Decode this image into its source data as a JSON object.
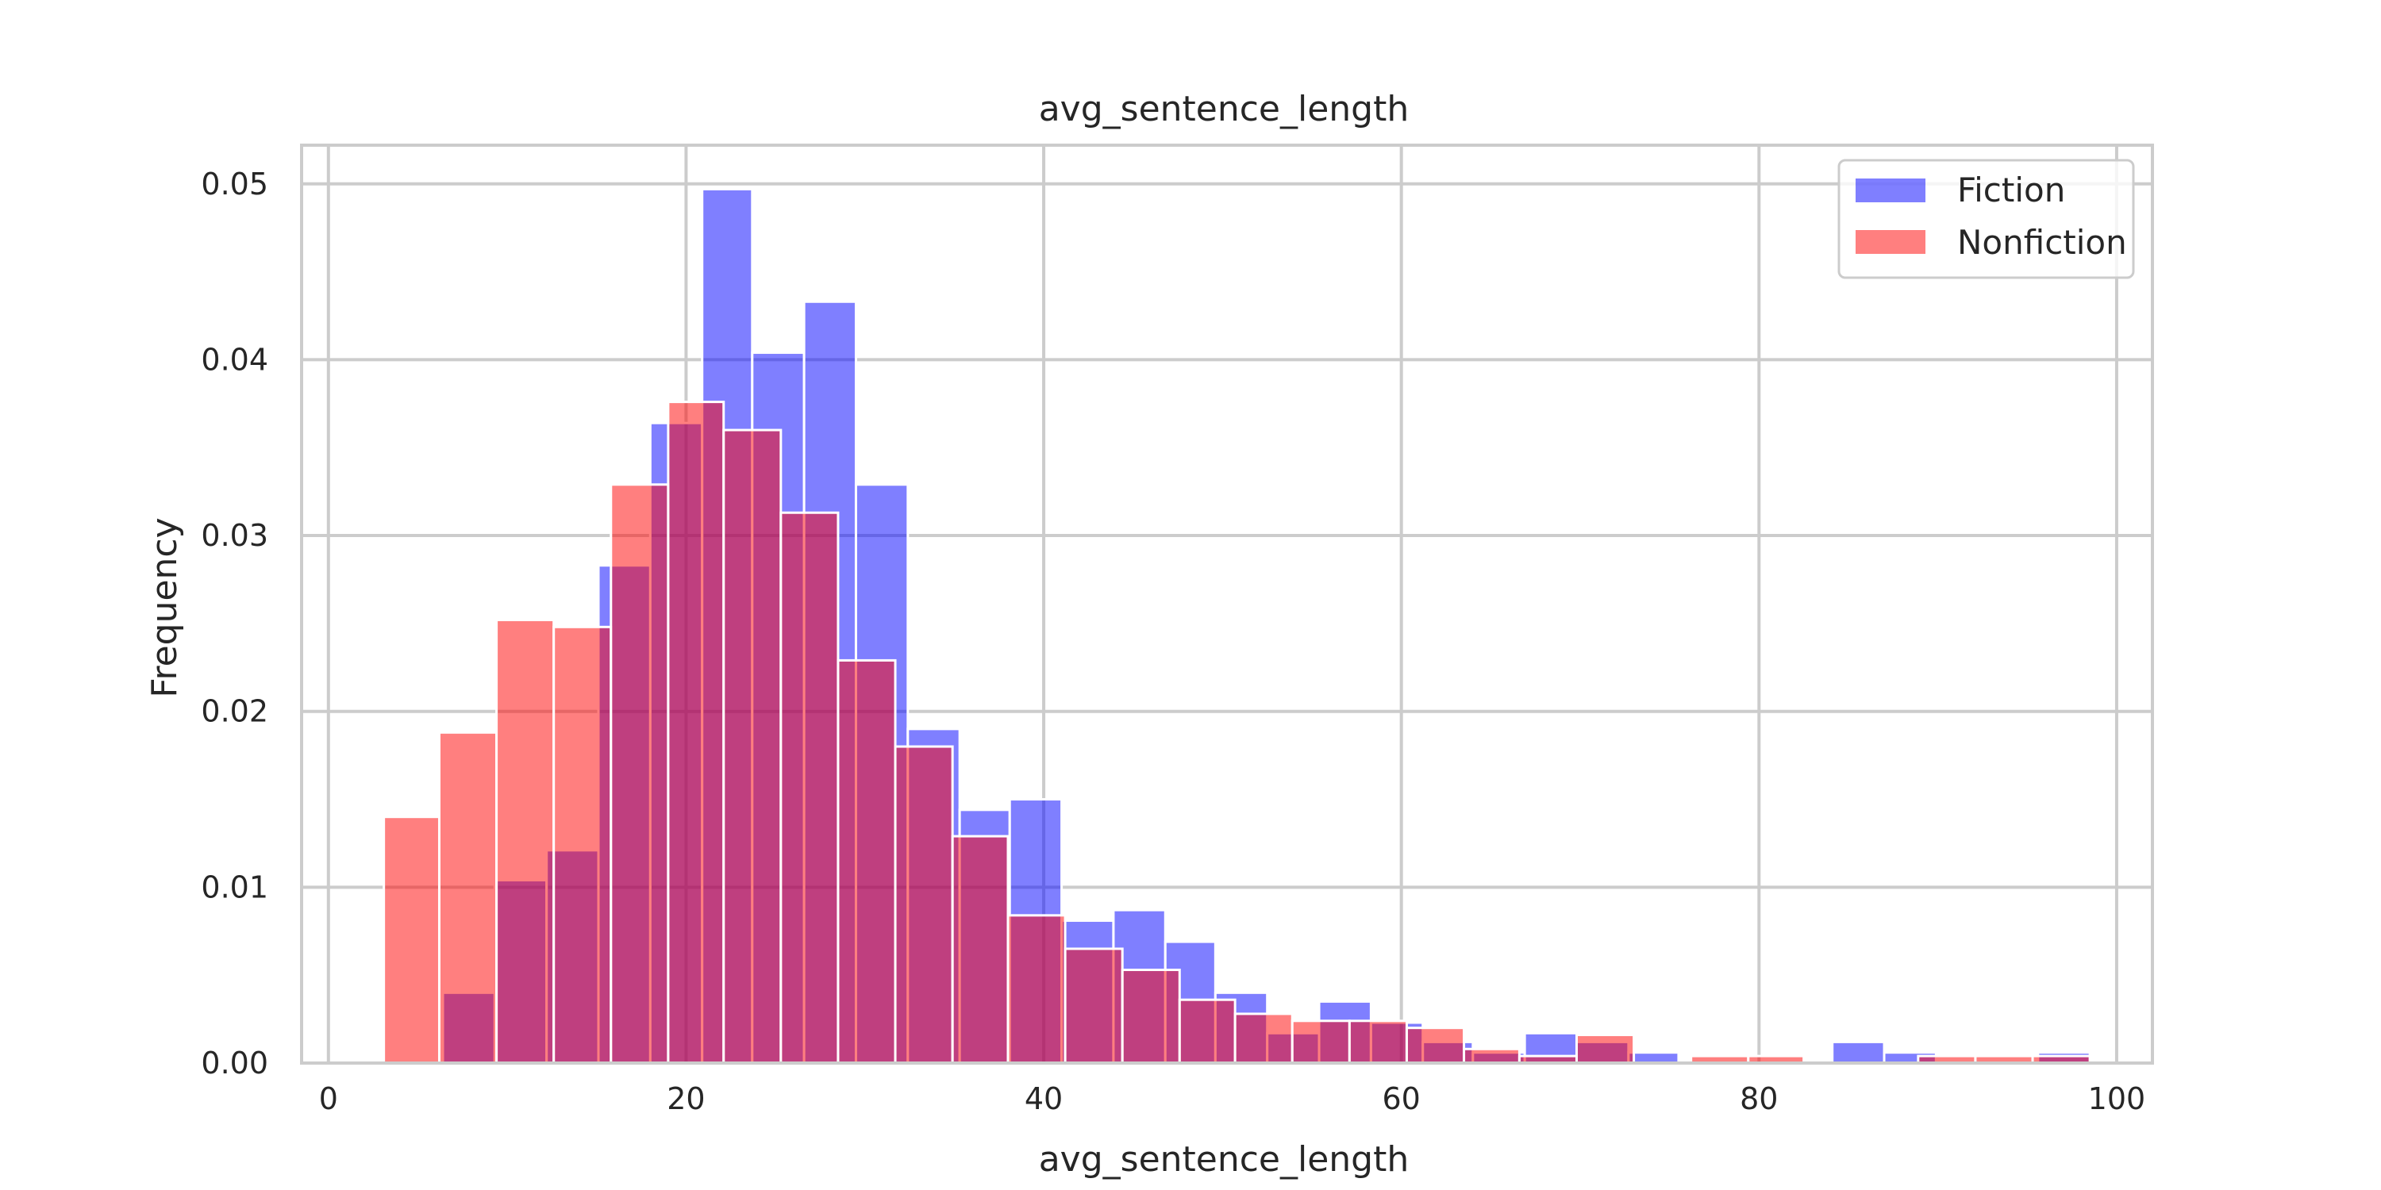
{
  "chart_data": {
    "type": "bar",
    "title": "avg_sentence_length",
    "xlabel": "avg_sentence_length",
    "ylabel": "Frequency",
    "xlim": [
      -1.5,
      102
    ],
    "ylim": [
      0,
      0.0522
    ],
    "xticks": [
      0,
      20,
      40,
      60,
      80,
      100
    ],
    "yticks": [
      0.0,
      0.01,
      0.02,
      0.03,
      0.04,
      0.05
    ],
    "ytick_labels": [
      "0.00",
      "0.01",
      "0.02",
      "0.03",
      "0.04",
      "0.05"
    ],
    "grid": true,
    "legend_position": "top-right",
    "series": [
      {
        "name": "Fiction",
        "color": "#0000ff",
        "opacity": 0.5,
        "bins": [
          [
            6.4,
            9.3,
            0.004
          ],
          [
            9.3,
            12.2,
            0.0104
          ],
          [
            12.2,
            15.1,
            0.0121
          ],
          [
            15.1,
            18.0,
            0.0283
          ],
          [
            18.0,
            20.9,
            0.0364
          ],
          [
            20.9,
            23.7,
            0.0497
          ],
          [
            23.7,
            26.6,
            0.0404
          ],
          [
            26.6,
            29.5,
            0.0433
          ],
          [
            29.5,
            32.4,
            0.0329
          ],
          [
            32.4,
            35.3,
            0.019
          ],
          [
            35.3,
            38.1,
            0.0144
          ],
          [
            38.1,
            41.0,
            0.015
          ],
          [
            41.0,
            43.9,
            0.0081
          ],
          [
            43.9,
            46.8,
            0.0087
          ],
          [
            46.8,
            49.6,
            0.0069
          ],
          [
            49.6,
            52.5,
            0.004
          ],
          [
            52.5,
            55.4,
            0.0017
          ],
          [
            55.4,
            58.3,
            0.0035
          ],
          [
            58.3,
            61.2,
            0.0023
          ],
          [
            61.2,
            64.0,
            0.0012
          ],
          [
            64.0,
            66.9,
            0.0006
          ],
          [
            66.9,
            69.8,
            0.0017
          ],
          [
            69.8,
            72.7,
            0.0012
          ],
          [
            72.7,
            75.5,
            0.0006
          ],
          [
            84.1,
            87.0,
            0.0012
          ],
          [
            87.0,
            89.9,
            0.0006
          ],
          [
            95.6,
            98.5,
            0.0006
          ]
        ]
      },
      {
        "name": "Nonfiction",
        "color": "#ff0000",
        "opacity": 0.5,
        "bins": [
          [
            3.1,
            6.2,
            0.014
          ],
          [
            6.2,
            9.4,
            0.0188
          ],
          [
            9.4,
            12.6,
            0.0252
          ],
          [
            12.6,
            15.8,
            0.0248
          ],
          [
            15.8,
            19.0,
            0.0329
          ],
          [
            19.0,
            22.1,
            0.0376
          ],
          [
            22.1,
            25.3,
            0.036
          ],
          [
            25.3,
            28.5,
            0.0313
          ],
          [
            28.5,
            31.7,
            0.0229
          ],
          [
            31.7,
            34.9,
            0.018
          ],
          [
            34.9,
            38.0,
            0.0129
          ],
          [
            38.0,
            41.2,
            0.0084
          ],
          [
            41.2,
            44.4,
            0.0065
          ],
          [
            44.4,
            47.6,
            0.0053
          ],
          [
            47.6,
            50.7,
            0.0036
          ],
          [
            50.7,
            53.9,
            0.0028
          ],
          [
            53.9,
            57.1,
            0.0024
          ],
          [
            57.1,
            60.3,
            0.0024
          ],
          [
            60.3,
            63.5,
            0.002
          ],
          [
            63.5,
            66.6,
            0.0008
          ],
          [
            66.6,
            69.8,
            0.0004
          ],
          [
            69.8,
            73.0,
            0.0016
          ],
          [
            76.2,
            79.4,
            0.0004
          ],
          [
            79.4,
            82.5,
            0.0004
          ],
          [
            85.7,
            88.9,
            0.0
          ],
          [
            88.9,
            92.1,
            0.0004
          ],
          [
            92.1,
            95.3,
            0.0004
          ],
          [
            95.3,
            98.5,
            0.0004
          ]
        ]
      }
    ]
  }
}
